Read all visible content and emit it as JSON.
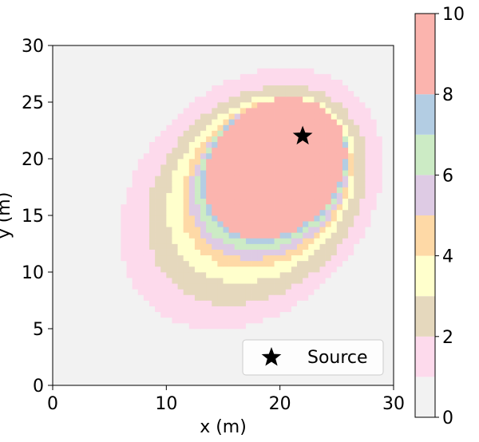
{
  "chart_data": {
    "type": "heatmap",
    "xlabel": "x (m)",
    "ylabel": "y (m)",
    "xlim": [
      0,
      30
    ],
    "ylim": [
      0,
      30
    ],
    "xticks": [
      "0",
      "10",
      "20",
      "30"
    ],
    "yticks": [
      "0",
      "5",
      "10",
      "15",
      "20",
      "25",
      "30"
    ],
    "grid": false,
    "background_level": 0,
    "levels": [
      {
        "value": 1,
        "center": [
          17.5,
          16.5
        ],
        "rx": 13.0,
        "ry": 9.9,
        "angle_deg": 45
      },
      {
        "value": 2,
        "center": [
          18.0,
          16.8
        ],
        "rx": 10.8,
        "ry": 8.4,
        "angle_deg": 45
      },
      {
        "value": 3,
        "center": [
          18.4,
          17.4
        ],
        "rx": 9.2,
        "ry": 7.3,
        "angle_deg": 45
      },
      {
        "value": 4,
        "center": [
          18.8,
          17.8
        ],
        "rx": 8.3,
        "ry": 6.6,
        "angle_deg": 45
      },
      {
        "value": 5,
        "center": [
          19.1,
          18.2
        ],
        "rx": 7.8,
        "ry": 6.2,
        "angle_deg": 45
      },
      {
        "value": 6,
        "center": [
          19.3,
          18.6
        ],
        "rx": 7.4,
        "ry": 5.9,
        "angle_deg": 45
      },
      {
        "value": 7,
        "center": [
          19.5,
          19.0
        ],
        "rx": 7.0,
        "ry": 5.7,
        "angle_deg": 45
      },
      {
        "value": 8,
        "center": [
          19.6,
          19.2
        ],
        "rx": 6.8,
        "ry": 5.5,
        "angle_deg": 45
      },
      {
        "value": 9,
        "center": [
          19.7,
          19.4
        ],
        "rx": 6.6,
        "ry": 5.2,
        "angle_deg": 45
      }
    ],
    "source": {
      "x": 22,
      "y": 22
    },
    "legend": {
      "label": "Source",
      "placement": "lower right"
    },
    "colorbar": {
      "range": [
        0,
        10
      ],
      "ticks": [
        "0",
        "2",
        "4",
        "6",
        "8",
        "10"
      ],
      "bands": [
        {
          "from": 0,
          "to": 1,
          "color": "#f2f2f2"
        },
        {
          "from": 1,
          "to": 2,
          "color": "#fddaec"
        },
        {
          "from": 2,
          "to": 3,
          "color": "#e5d8bd"
        },
        {
          "from": 3,
          "to": 4,
          "color": "#ffffcc"
        },
        {
          "from": 4,
          "to": 5,
          "color": "#fed9a6"
        },
        {
          "from": 5,
          "to": 6,
          "color": "#decbe4"
        },
        {
          "from": 6,
          "to": 7,
          "color": "#ccebc5"
        },
        {
          "from": 7,
          "to": 8,
          "color": "#b3cde3"
        },
        {
          "from": 8,
          "to": 10,
          "color": "#fbb4ae"
        }
      ]
    }
  }
}
